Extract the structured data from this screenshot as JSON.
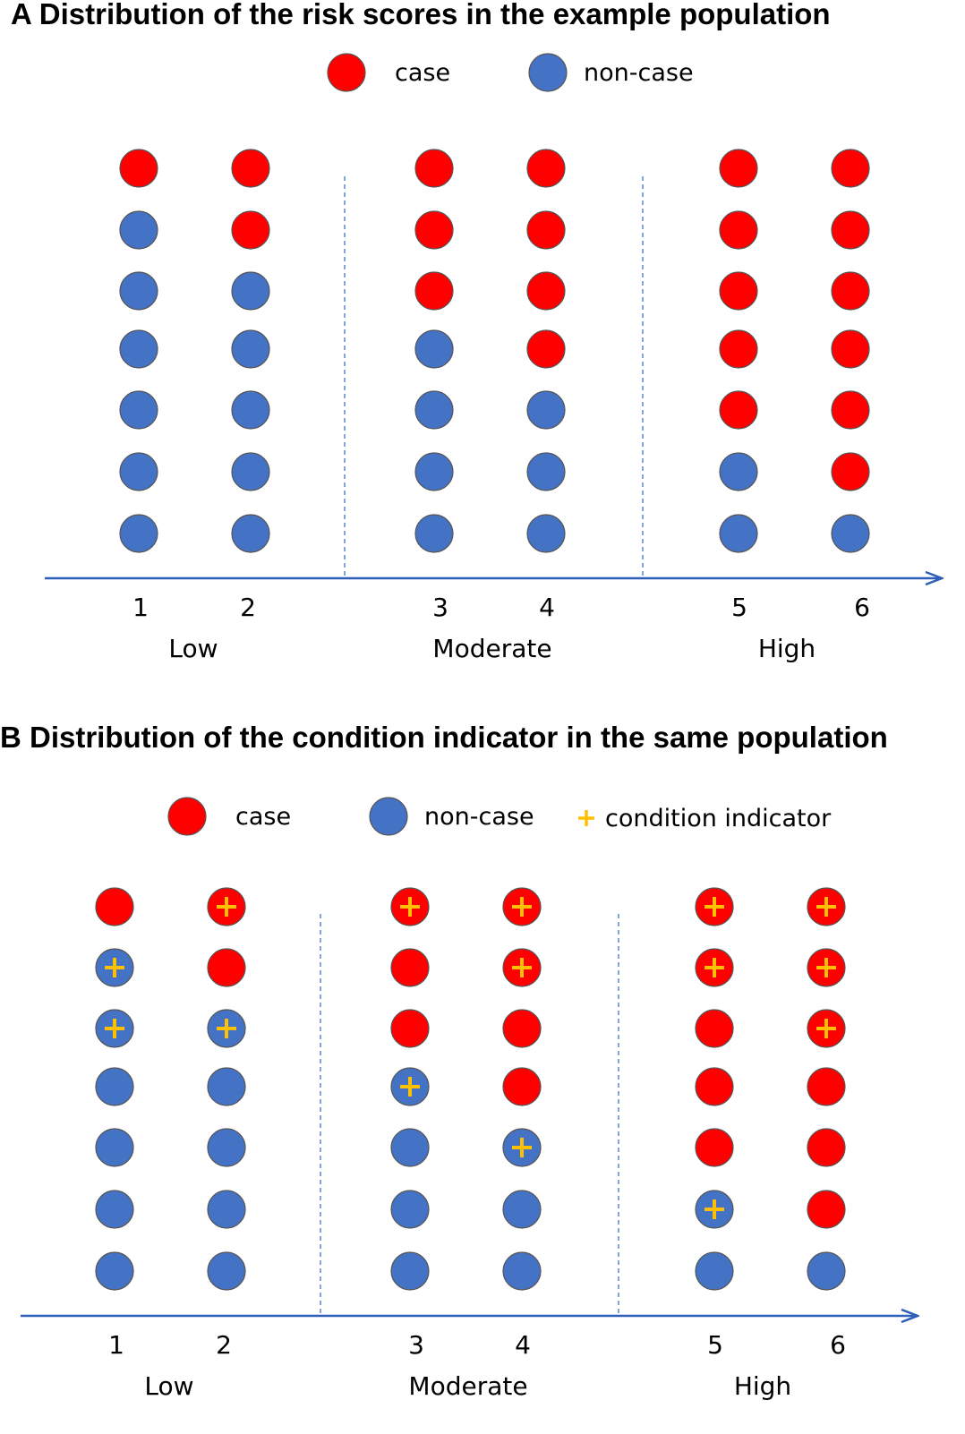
{
  "colors": {
    "case": "#ff0000",
    "non_case": "#4472c4",
    "indicator": "#ffc000",
    "axis": "#2e5fb8",
    "divider": "#4472c4",
    "marker_outline": "#555555"
  },
  "panels": [
    {
      "title": "A  Distribution of the risk scores in the example population",
      "legend": [
        {
          "label": "case",
          "kind": "case"
        },
        {
          "label": "non-case",
          "kind": "non_case"
        }
      ],
      "scores": [
        "1",
        "2",
        "3",
        "4",
        "5",
        "6"
      ],
      "groups": [
        "Low",
        "Moderate",
        "High"
      ],
      "columns": [
        {
          "score": "1",
          "cases": 1,
          "total": 7,
          "indicator_rows": []
        },
        {
          "score": "2",
          "cases": 2,
          "total": 7,
          "indicator_rows": []
        },
        {
          "score": "3",
          "cases": 3,
          "total": 7,
          "indicator_rows": []
        },
        {
          "score": "4",
          "cases": 4,
          "total": 7,
          "indicator_rows": []
        },
        {
          "score": "5",
          "cases": 5,
          "total": 7,
          "indicator_rows": []
        },
        {
          "score": "6",
          "cases": 6,
          "total": 7,
          "indicator_rows": []
        }
      ]
    },
    {
      "title": "B  Distribution of the condition indicator in the same population",
      "legend": [
        {
          "label": "case",
          "kind": "case"
        },
        {
          "label": "non-case",
          "kind": "non_case"
        },
        {
          "label": "condition indicator",
          "kind": "indicator"
        }
      ],
      "scores": [
        "1",
        "2",
        "3",
        "4",
        "5",
        "6"
      ],
      "groups": [
        "Low",
        "Moderate",
        "High"
      ],
      "columns": [
        {
          "score": "1",
          "cases": 1,
          "total": 7,
          "indicator_rows": [
            2,
            3
          ]
        },
        {
          "score": "2",
          "cases": 2,
          "total": 7,
          "indicator_rows": [
            1,
            3
          ]
        },
        {
          "score": "3",
          "cases": 3,
          "total": 7,
          "indicator_rows": [
            1,
            4
          ]
        },
        {
          "score": "4",
          "cases": 4,
          "total": 7,
          "indicator_rows": [
            1,
            2,
            5
          ]
        },
        {
          "score": "5",
          "cases": 5,
          "total": 7,
          "indicator_rows": [
            1,
            2,
            6
          ]
        },
        {
          "score": "6",
          "cases": 6,
          "total": 7,
          "indicator_rows": [
            1,
            2,
            3
          ]
        }
      ]
    }
  ]
}
